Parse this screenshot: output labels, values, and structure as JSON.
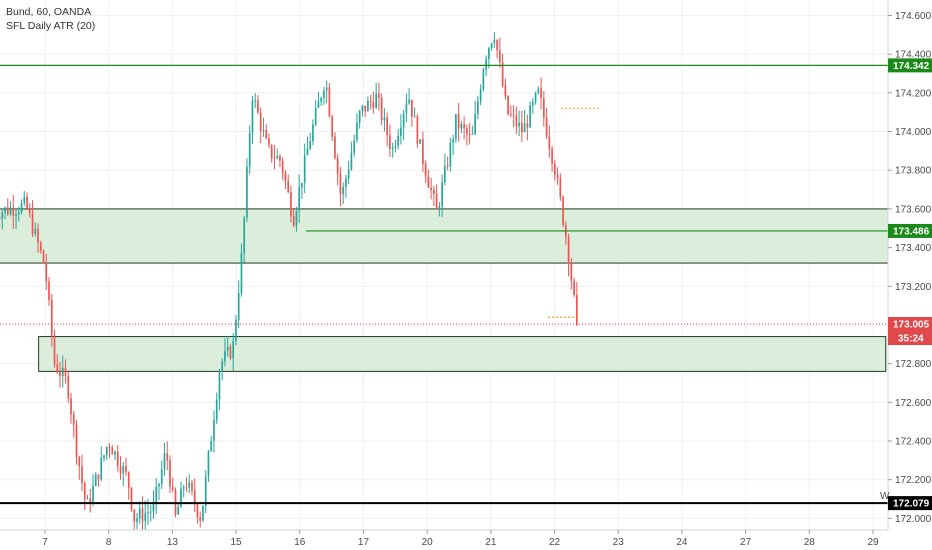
{
  "legend": {
    "symbol_line": "Bund, 60, OANDA",
    "indicator_line": "SFL Daily ATR (20)"
  },
  "chart_data": {
    "type": "candlestick",
    "title": "Bund, 60, OANDA",
    "indicator": "SFL Daily ATR (20)",
    "ylim": [
      171.94,
      174.68
    ],
    "y_ticks": [
      "174.600",
      "174.400",
      "174.200",
      "174.000",
      "173.800",
      "173.600",
      "173.400",
      "173.200",
      "173.000",
      "172.800",
      "172.600",
      "172.400",
      "172.200",
      "172.000"
    ],
    "x_ticks": [
      "7",
      "8",
      "13",
      "15",
      "16",
      "17",
      "20",
      "21",
      "22",
      "23",
      "24",
      "27",
      "28",
      "29"
    ],
    "x_tick_sessions": [
      1.1,
      2.1,
      3.1,
      4.1,
      5.1,
      6.1,
      7.1,
      8.1,
      9.1,
      10.1,
      11.1,
      12.1,
      13.1,
      14.1
    ],
    "sessions_span": [
      0.3,
      15.2
    ],
    "candles_shown": 213,
    "price_path": [
      [
        0.3,
        173.58
      ],
      [
        0.8,
        173.62
      ],
      [
        1.1,
        173.3
      ],
      [
        1.25,
        172.8
      ],
      [
        1.45,
        172.7
      ],
      [
        1.6,
        172.35
      ],
      [
        1.75,
        172.05
      ],
      [
        2.1,
        172.4
      ],
      [
        2.4,
        172.2
      ],
      [
        2.5,
        172.0
      ],
      [
        2.8,
        172.05
      ],
      [
        3.0,
        172.35
      ],
      [
        3.15,
        172.0
      ],
      [
        3.3,
        172.2
      ],
      [
        3.55,
        172.0
      ],
      [
        3.7,
        172.4
      ],
      [
        3.85,
        172.8
      ],
      [
        4.05,
        172.88
      ],
      [
        4.2,
        173.4
      ],
      [
        4.35,
        174.2
      ],
      [
        4.6,
        173.9
      ],
      [
        4.8,
        173.85
      ],
      [
        5.0,
        173.55
      ],
      [
        5.25,
        173.95
      ],
      [
        5.5,
        174.28
      ],
      [
        5.75,
        173.65
      ],
      [
        6.05,
        174.1
      ],
      [
        6.3,
        174.18
      ],
      [
        6.55,
        173.9
      ],
      [
        6.8,
        174.2
      ],
      [
        7.0,
        173.9
      ],
      [
        7.25,
        173.58
      ],
      [
        7.55,
        174.05
      ],
      [
        7.8,
        173.95
      ],
      [
        8.0,
        174.38
      ],
      [
        8.15,
        174.52
      ],
      [
        8.35,
        174.1
      ],
      [
        8.6,
        174.0
      ],
      [
        8.85,
        174.2
      ],
      [
        9.1,
        173.82
      ],
      [
        9.3,
        173.42
      ],
      [
        9.45,
        173.0
      ]
    ],
    "horizontal_levels": [
      {
        "price": 174.342,
        "label": "174.342",
        "color": "#1b8a1b"
      },
      {
        "price": 173.486,
        "label": "173.486",
        "color": "#1b8a1b"
      },
      {
        "price": 173.005,
        "label": "173.005",
        "color": "#e0484b"
      },
      {
        "price": 172.079,
        "label": "172.079",
        "color": "#000000"
      }
    ],
    "last_price": "173.005",
    "countdown": "35:24",
    "weekly_marker": "W",
    "zones": [
      {
        "top": 173.6,
        "bottom": 173.32,
        "start": 0.3,
        "end": "chart-right"
      },
      {
        "top": 172.94,
        "bottom": 172.76,
        "start": 1.0,
        "end": 14.3
      }
    ],
    "atr_marks": [
      {
        "price": 174.12,
        "start": 9.2,
        "end": 9.8
      },
      {
        "price": 173.04,
        "start": 9.0,
        "end": 9.5
      }
    ],
    "colors": {
      "up": "#26a69a",
      "down": "#ef5350",
      "zone_fill": "#d9ecd9",
      "zone_border": "#1f3d1f",
      "grid": "#eef0f3",
      "atr": "#f0a030"
    }
  }
}
